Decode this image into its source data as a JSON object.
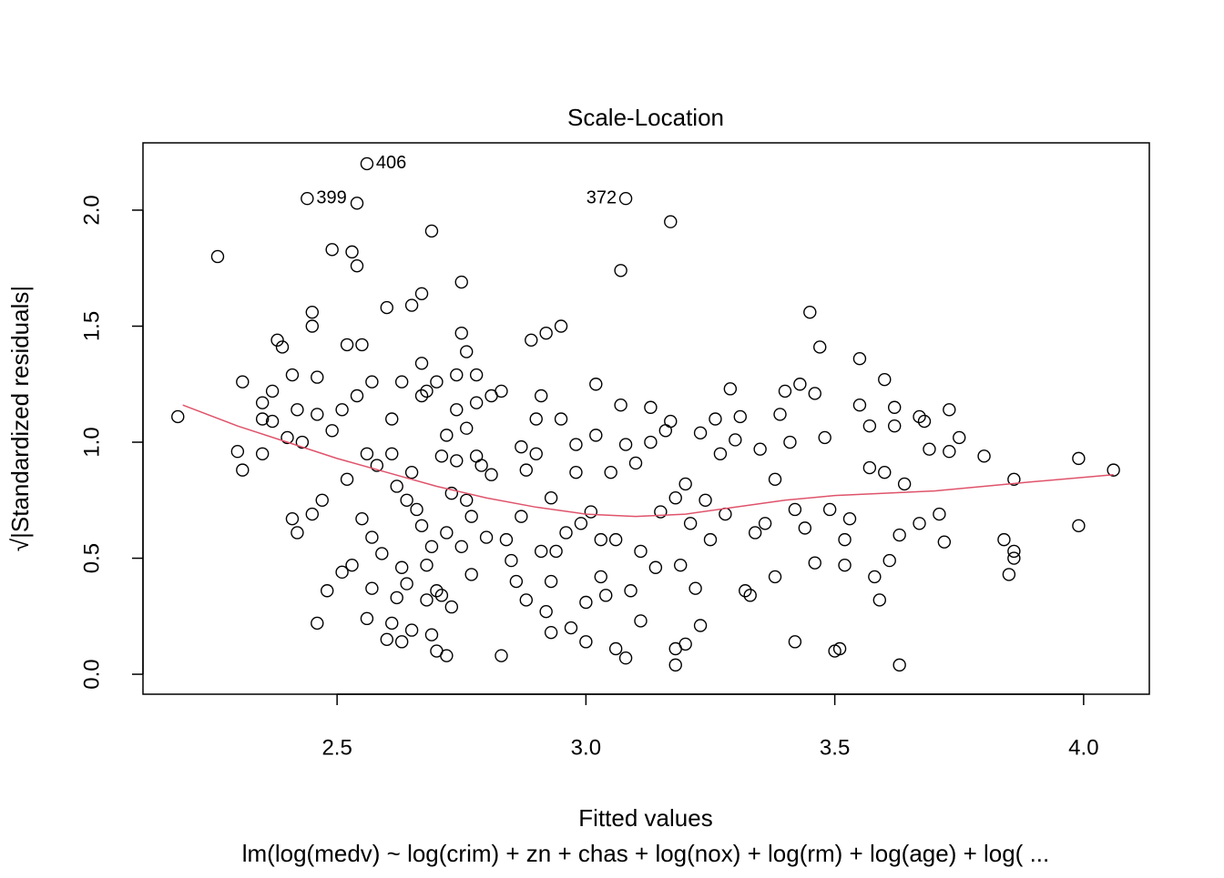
{
  "chart_data": {
    "type": "scatter",
    "title": "Scale-Location",
    "x_label": "Fitted values",
    "y_label": "√|Standardized residuals|",
    "subtitle": "lm(log(medv) ~ log(crim) + zn + chas + log(nox) + log(rm) + log(age) + log( ...",
    "xlim": [
      2.11,
      4.132
    ],
    "ylim": [
      -0.086,
      2.29
    ],
    "xticks": [
      2.5,
      {
        "value": 3,
        "label": "3.0"
      },
      3.5,
      {
        "value": 4,
        "label": "4.0"
      }
    ],
    "yticks": [
      {
        "value": 0,
        "label": "0.0"
      },
      0.5,
      {
        "value": 1,
        "label": "1.0"
      },
      1.5,
      {
        "value": 2,
        "label": "2.0"
      }
    ],
    "grid": false,
    "color": "#000000",
    "x": [
      2.18,
      2.26,
      2.3,
      2.31,
      2.31,
      2.35,
      2.35,
      2.35,
      2.37,
      2.37,
      2.38,
      2.39,
      2.4,
      2.41,
      2.41,
      2.42,
      2.42,
      2.43,
      2.45,
      2.45,
      2.45,
      2.46,
      2.46,
      2.46,
      2.47,
      2.48,
      2.49,
      2.49,
      2.51,
      2.51,
      2.52,
      2.52,
      2.53,
      2.53,
      2.54,
      2.54,
      2.55,
      2.55,
      2.56,
      2.56,
      2.57,
      2.57,
      2.57,
      2.58,
      2.59,
      2.6,
      2.6,
      2.61,
      2.61,
      2.61,
      2.62,
      2.62,
      2.63,
      2.63,
      2.63,
      2.64,
      2.64,
      2.65,
      2.65,
      2.65,
      2.66,
      2.67,
      2.67,
      2.67,
      2.67,
      2.68,
      2.68,
      2.68,
      2.69,
      2.69,
      2.69,
      2.7,
      2.7,
      2.7,
      2.71,
      2.72,
      2.71,
      2.72,
      2.72,
      2.73,
      2.73,
      2.74,
      2.74,
      2.74,
      2.75,
      2.75,
      2.75,
      2.76,
      2.76,
      2.76,
      2.77,
      2.77,
      2.78,
      2.78,
      2.78,
      2.79,
      2.8,
      2.81,
      2.81,
      2.83,
      2.83,
      2.84,
      2.85,
      2.86,
      2.87,
      2.87,
      2.88,
      2.88,
      2.89,
      2.9,
      2.9,
      2.91,
      2.91,
      2.92,
      2.92,
      2.93,
      2.93,
      2.93,
      2.94,
      2.95,
      2.95,
      2.96,
      2.97,
      2.98,
      2.98,
      2.99,
      3.0,
      3.0,
      3.01,
      3.02,
      3.02,
      3.03,
      3.03,
      3.04,
      3.05,
      3.06,
      3.06,
      3.07,
      3.07,
      3.08,
      3.08,
      3.09,
      3.1,
      3.11,
      3.11,
      3.13,
      3.13,
      3.14,
      3.15,
      3.16,
      3.17,
      3.17,
      3.18,
      3.18,
      3.18,
      3.19,
      3.2,
      3.2,
      3.21,
      3.22,
      3.23,
      3.23,
      3.24,
      3.25,
      3.26,
      3.27,
      3.28,
      3.29,
      3.3,
      3.31,
      3.32,
      3.33,
      3.34,
      3.35,
      3.36,
      3.38,
      3.38,
      3.39,
      3.4,
      3.41,
      3.42,
      3.42,
      3.43,
      3.44,
      3.45,
      3.46,
      3.46,
      3.47,
      3.48,
      3.49,
      3.5,
      3.51,
      3.52,
      3.52,
      3.53,
      3.55,
      3.55,
      3.57,
      3.57,
      3.58,
      3.59,
      3.6,
      3.6,
      3.61,
      3.62,
      3.62,
      3.63,
      3.63,
      3.64,
      3.67,
      3.67,
      3.68,
      3.69,
      3.71,
      3.72,
      3.73,
      3.73,
      3.75,
      3.8,
      3.84,
      3.85,
      3.86,
      3.86,
      3.86,
      3.99,
      3.99,
      4.06,
      2.54
    ],
    "y": [
      1.11,
      1.8,
      0.96,
      0.88,
      1.26,
      1.1,
      1.17,
      0.95,
      1.22,
      1.09,
      1.44,
      1.41,
      1.02,
      0.67,
      1.29,
      0.61,
      1.14,
      1.0,
      0.69,
      1.56,
      1.5,
      0.22,
      1.28,
      1.12,
      0.75,
      0.36,
      1.05,
      1.83,
      1.14,
      0.44,
      0.84,
      1.42,
      0.47,
      1.82,
      1.76,
      1.2,
      1.42,
      0.67,
      0.24,
      0.95,
      0.37,
      1.26,
      0.59,
      0.9,
      0.52,
      1.58,
      0.15,
      1.1,
      0.22,
      0.95,
      0.81,
      0.33,
      1.26,
      0.46,
      0.14,
      0.75,
      0.39,
      0.19,
      0.87,
      1.59,
      0.71,
      1.2,
      0.64,
      1.64,
      1.34,
      0.47,
      0.32,
      1.22,
      0.17,
      1.91,
      0.55,
      1.26,
      0.36,
      0.1,
      0.34,
      0.08,
      0.94,
      1.03,
      0.61,
      0.29,
      0.78,
      1.14,
      1.29,
      0.92,
      1.69,
      0.55,
      1.47,
      1.39,
      0.75,
      1.06,
      0.43,
      0.68,
      1.17,
      0.94,
      1.29,
      0.9,
      0.59,
      1.2,
      0.86,
      0.08,
      1.22,
      0.58,
      0.49,
      0.4,
      0.68,
      0.98,
      0.32,
      0.88,
      1.44,
      1.1,
      0.95,
      0.53,
      1.2,
      1.47,
      0.27,
      0.18,
      0.76,
      0.4,
      0.53,
      1.1,
      1.5,
      0.61,
      0.2,
      0.87,
      0.99,
      0.65,
      0.14,
      0.31,
      0.7,
      1.03,
      1.25,
      0.42,
      0.58,
      0.34,
      0.87,
      0.11,
      0.58,
      1.16,
      1.74,
      0.99,
      0.07,
      0.36,
      0.91,
      0.23,
      0.53,
      1.15,
      1.0,
      0.46,
      0.7,
      1.05,
      1.09,
      1.95,
      0.11,
      0.04,
      0.76,
      0.47,
      0.13,
      0.82,
      0.65,
      0.37,
      0.21,
      1.04,
      0.75,
      0.58,
      1.1,
      0.95,
      0.69,
      1.23,
      1.01,
      1.11,
      0.36,
      0.34,
      0.61,
      0.97,
      0.65,
      0.84,
      0.42,
      1.12,
      1.22,
      1.0,
      0.14,
      0.71,
      1.25,
      0.63,
      1.56,
      1.21,
      0.48,
      1.41,
      1.02,
      0.71,
      0.1,
      0.11,
      0.58,
      0.47,
      0.67,
      1.36,
      1.16,
      0.89,
      1.07,
      0.42,
      0.32,
      1.27,
      0.87,
      0.49,
      1.07,
      1.15,
      0.04,
      0.6,
      0.82,
      1.11,
      0.65,
      1.09,
      0.97,
      0.69,
      0.57,
      1.14,
      0.96,
      1.02,
      0.94,
      0.58,
      0.43,
      0.53,
      0.84,
      0.5,
      0.93,
      0.64,
      0.88,
      2.03
    ],
    "annotations": [
      {
        "label": "406",
        "x": 2.56,
        "y": 2.2
      },
      {
        "label": "399",
        "x": 2.44,
        "y": 2.05
      },
      {
        "label": "372",
        "x": 3.08,
        "y": 2.05
      }
    ],
    "lowess": {
      "color": "#df536b",
      "x": [
        2.19,
        2.3,
        2.4,
        2.5,
        2.6,
        2.7,
        2.8,
        2.9,
        3.0,
        3.1,
        3.2,
        3.3,
        3.4,
        3.5,
        3.6,
        3.7,
        3.8,
        3.9,
        4.06
      ],
      "y": [
        1.16,
        1.07,
        1.0,
        0.93,
        0.87,
        0.81,
        0.76,
        0.72,
        0.69,
        0.68,
        0.69,
        0.72,
        0.75,
        0.77,
        0.78,
        0.79,
        0.81,
        0.83,
        0.86
      ]
    }
  }
}
